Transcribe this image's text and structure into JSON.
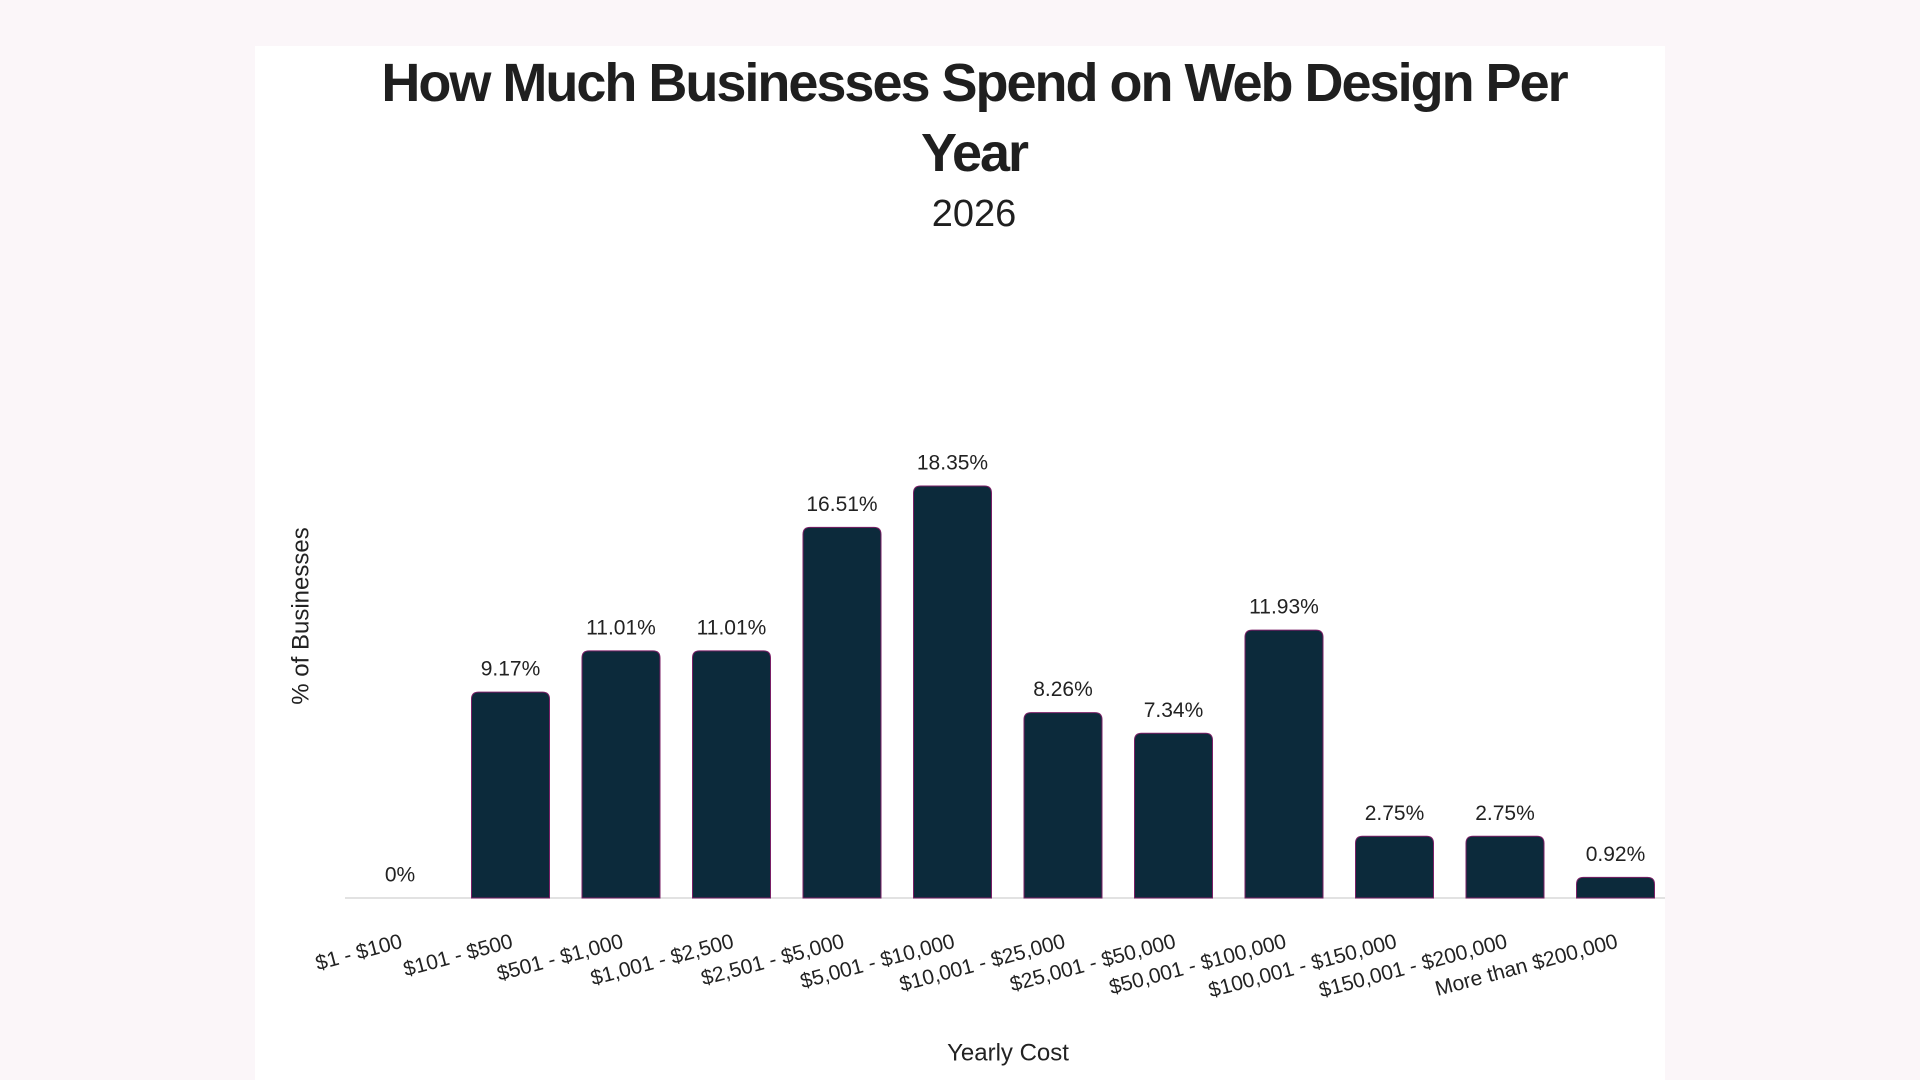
{
  "chart_data": {
    "type": "bar",
    "title": "How Much Businesses Spend on Web Design Per Year",
    "subtitle": "2026",
    "xlabel": "Yearly Cost",
    "ylabel": "% of Businesses",
    "categories": [
      "$1 - $100",
      "$101 - $500",
      "$501 - $1,000",
      "$1,001 - $2,500",
      "$2,501 - $5,000",
      "$5,001 - $10,000",
      "$10,001 - $25,000",
      "$25,001 - $50,000",
      "$50,001 - $100,000",
      "$100,001 - $150,000",
      "$150,001 - $200,000",
      "More than $200,000"
    ],
    "values": [
      0,
      9.17,
      11.01,
      11.01,
      16.51,
      18.35,
      8.26,
      7.34,
      11.93,
      2.75,
      2.75,
      0.92
    ],
    "value_labels": [
      "0%",
      "9.17%",
      "11.01%",
      "11.01%",
      "16.51%",
      "18.35%",
      "8.26%",
      "7.34%",
      "11.93%",
      "2.75%",
      "2.75%",
      "0.92%"
    ],
    "color": "#0c2a3b",
    "ylim": [
      0,
      20
    ]
  }
}
